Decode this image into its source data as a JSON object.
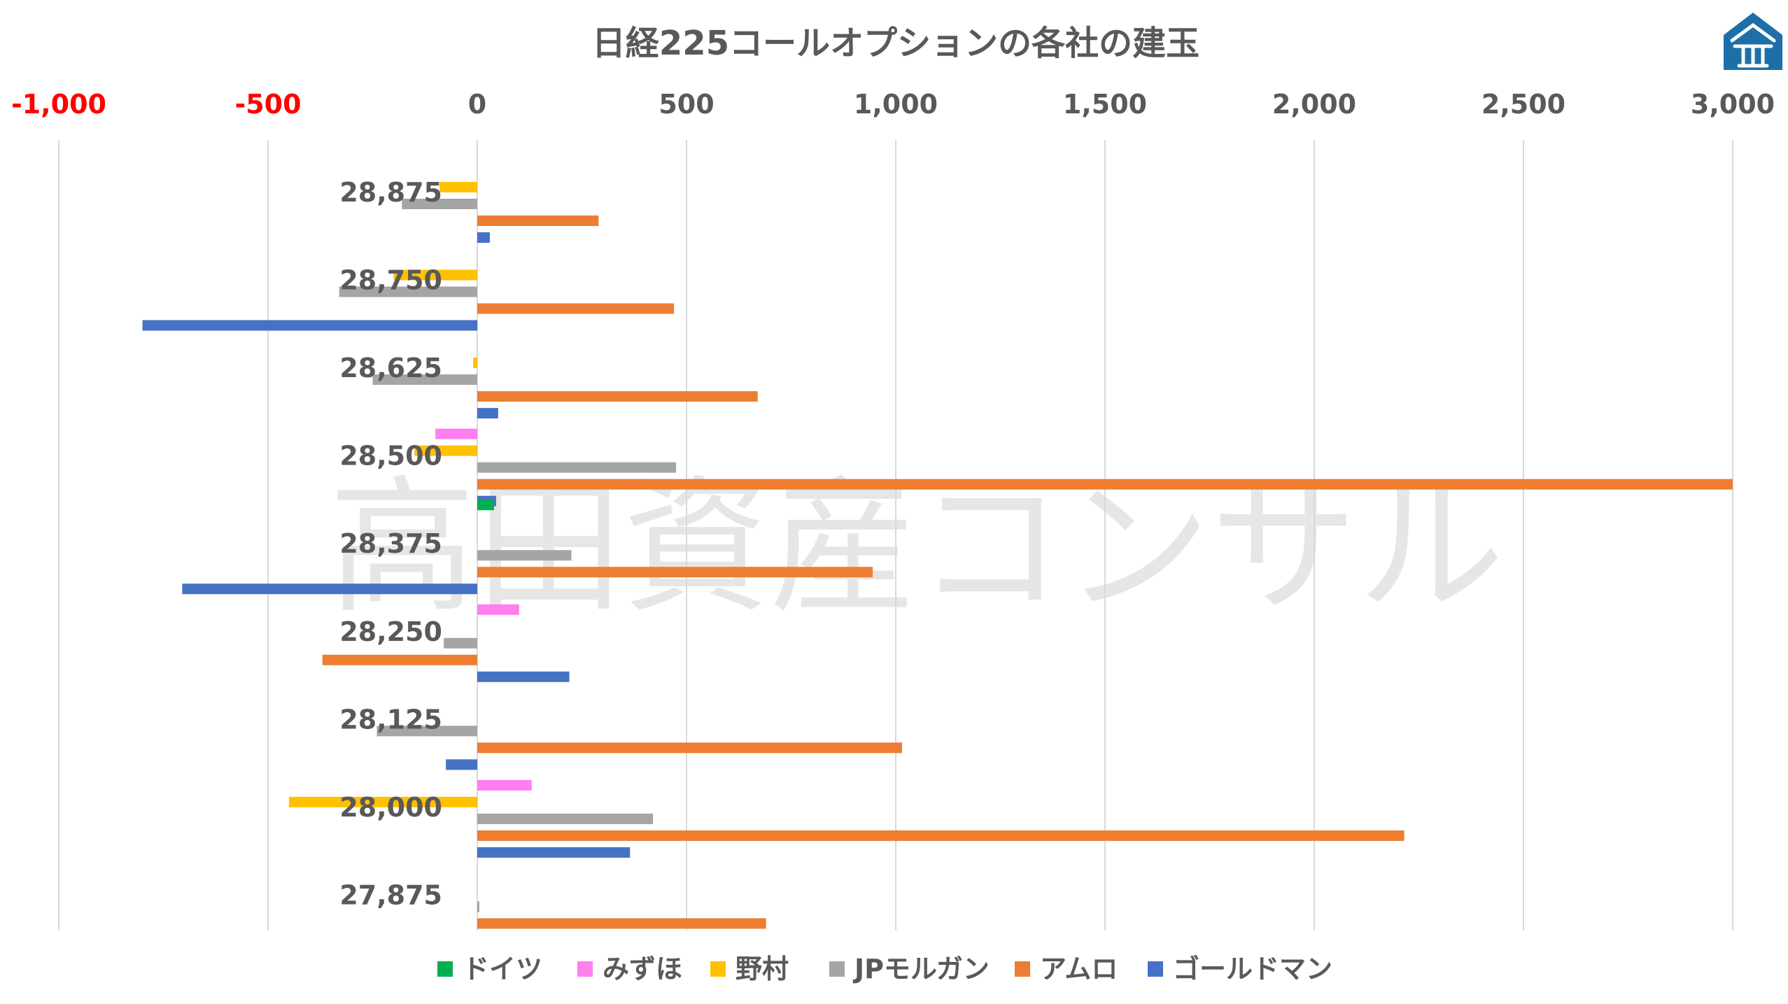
{
  "watermark": "高田資産コンサル",
  "logo": {
    "icon": "house-logo-icon",
    "color": "#1e6fa8"
  },
  "chart_data": {
    "type": "bar",
    "orientation": "horizontal",
    "title": "日経225コールオプションの各社の建玉",
    "xlim": [
      -1000,
      3000
    ],
    "x_ticks": [
      -1000,
      -500,
      0,
      500,
      1000,
      1500,
      2000,
      2500,
      3000
    ],
    "x_tick_labels": [
      "-1,000",
      "-500",
      "0",
      "500",
      "1,000",
      "1,500",
      "2,000",
      "2,500",
      "3,000"
    ],
    "negative_tick_color": "#ff0000",
    "tick_color": "#595959",
    "grid": true,
    "grid_direction": "vertical",
    "legend_position": "bottom",
    "categories": [
      "28,875",
      "28,750",
      "28,625",
      "28,500",
      "28,375",
      "28,250",
      "28,125",
      "28,000",
      "27,875"
    ],
    "series": [
      {
        "name": "ドイツ",
        "color": "#00b050",
        "values": [
          0,
          0,
          0,
          0,
          40,
          0,
          0,
          0,
          0
        ]
      },
      {
        "name": "みずほ",
        "color": "#ff7ef0",
        "values": [
          0,
          0,
          0,
          -100,
          0,
          100,
          0,
          130,
          0
        ]
      },
      {
        "name": "野村",
        "color": "#ffc000",
        "values": [
          -90,
          -200,
          -10,
          -150,
          0,
          0,
          0,
          -450,
          0
        ]
      },
      {
        "name": "JPモルガン",
        "color": "#a5a5a5",
        "values": [
          -180,
          -330,
          -250,
          475,
          225,
          -80,
          -240,
          420,
          5
        ]
      },
      {
        "name": "アムロ",
        "color": "#ed7d31",
        "values": [
          290,
          470,
          670,
          3000,
          945,
          -370,
          1015,
          2215,
          690
        ]
      },
      {
        "name": "ゴールドマン",
        "color": "#4472c4",
        "values": [
          30,
          -800,
          50,
          45,
          -705,
          220,
          -75,
          365,
          0
        ]
      }
    ]
  }
}
